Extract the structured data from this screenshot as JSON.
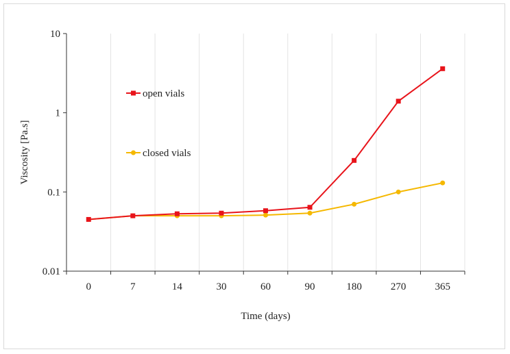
{
  "chart_data": {
    "type": "line",
    "categories": [
      "0",
      "7",
      "14",
      "30",
      "60",
      "90",
      "180",
      "270",
      "365"
    ],
    "xlabel": "Time (days)",
    "ylabel": "Viscosity [Pa.s]",
    "yscale": "log",
    "ylim": [
      0.01,
      10
    ],
    "yticks": [
      "0.01",
      "0.1",
      "1",
      "10"
    ],
    "grid": "vertical",
    "legend_placement": "inside-left",
    "series": [
      {
        "name": "open vials",
        "color": "#e8141b",
        "marker": "square",
        "values": [
          0.045,
          0.05,
          0.053,
          0.054,
          0.058,
          0.064,
          0.25,
          1.4,
          3.6
        ]
      },
      {
        "name": "closed vials",
        "color": "#f5b800",
        "marker": "circle",
        "values": [
          0.045,
          0.05,
          0.05,
          0.05,
          0.051,
          0.054,
          0.07,
          0.1,
          0.13
        ]
      }
    ]
  }
}
